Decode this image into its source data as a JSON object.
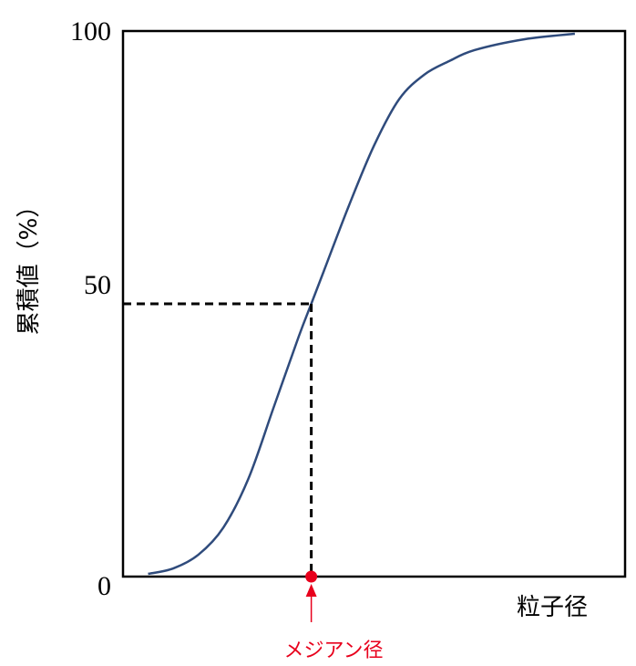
{
  "chart_data": {
    "type": "line",
    "ylabel": "累積値（%）",
    "xlabel": "粒子径",
    "y_ticks": [
      "0",
      "50",
      "100"
    ],
    "ylim": [
      0,
      100
    ],
    "xlim": [
      0,
      100
    ],
    "grid": false,
    "series": [
      {
        "color": "#2f4b7c",
        "points": [
          [
            5,
            0.5
          ],
          [
            10,
            1.5
          ],
          [
            15,
            4
          ],
          [
            20,
            9
          ],
          [
            25,
            18
          ],
          [
            30,
            31
          ],
          [
            35,
            44
          ],
          [
            37.5,
            50
          ],
          [
            40,
            56
          ],
          [
            45,
            68
          ],
          [
            50,
            79
          ],
          [
            55,
            87.5
          ],
          [
            60,
            92
          ],
          [
            65,
            94.5
          ],
          [
            70,
            96.5
          ],
          [
            80,
            98.5
          ],
          [
            90,
            99.5
          ]
        ]
      }
    ],
    "median": {
      "x": 37.5,
      "y": 50,
      "color": "#e8001c"
    },
    "annotation": {
      "label": "メジアン径",
      "color": "#e8001c"
    }
  }
}
